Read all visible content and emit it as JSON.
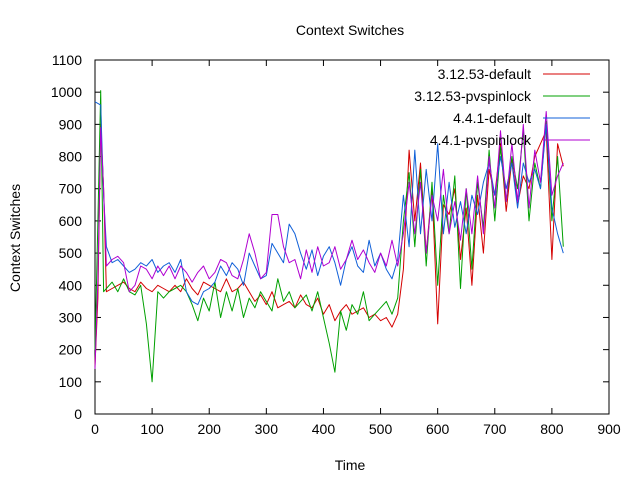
{
  "chart_data": {
    "type": "line",
    "title": "Context Switches",
    "xlabel": "Time",
    "ylabel": "Context Switches",
    "xlim": [
      0,
      900
    ],
    "ylim": [
      0,
      1100
    ],
    "xticks": [
      0,
      100,
      200,
      300,
      400,
      500,
      600,
      700,
      800,
      900
    ],
    "yticks": [
      0,
      100,
      200,
      300,
      400,
      500,
      600,
      700,
      800,
      900,
      1000,
      1100
    ],
    "grid": false,
    "legend_position": "top-right",
    "series": [
      {
        "name": "3.12.53-default",
        "color": "#d40000",
        "x": [
          0,
          5,
          10,
          15,
          20,
          30,
          40,
          50,
          60,
          70,
          80,
          90,
          100,
          110,
          120,
          130,
          140,
          150,
          160,
          170,
          180,
          190,
          200,
          210,
          220,
          230,
          240,
          250,
          260,
          270,
          280,
          290,
          300,
          310,
          320,
          330,
          340,
          350,
          360,
          370,
          380,
          390,
          400,
          410,
          420,
          430,
          440,
          450,
          460,
          470,
          480,
          490,
          500,
          510,
          520,
          530,
          540,
          550,
          560,
          570,
          580,
          590,
          600,
          610,
          620,
          630,
          640,
          650,
          660,
          670,
          680,
          690,
          700,
          710,
          720,
          730,
          740,
          750,
          760,
          770,
          780,
          790,
          800,
          810,
          820
        ],
        "y": [
          150,
          360,
          900,
          700,
          380,
          390,
          400,
          410,
          390,
          380,
          410,
          390,
          380,
          400,
          390,
          380,
          400,
          380,
          420,
          390,
          370,
          410,
          400,
          390,
          380,
          420,
          380,
          390,
          410,
          380,
          350,
          370,
          340,
          380,
          330,
          340,
          350,
          330,
          370,
          340,
          330,
          360,
          310,
          340,
          290,
          320,
          340,
          310,
          320,
          330,
          300,
          310,
          290,
          300,
          270,
          310,
          450,
          820,
          600,
          780,
          500,
          700,
          280,
          650,
          620,
          700,
          480,
          640,
          400,
          680,
          500,
          760,
          680,
          840,
          630,
          790,
          650,
          740,
          700,
          800,
          840,
          880,
          480,
          840,
          770
        ]
      },
      {
        "name": "3.12.53-pvspinlock",
        "color": "#00a000",
        "x": [
          0,
          5,
          10,
          15,
          20,
          30,
          40,
          50,
          60,
          70,
          80,
          90,
          100,
          110,
          120,
          130,
          140,
          150,
          160,
          170,
          180,
          190,
          200,
          210,
          220,
          230,
          240,
          250,
          260,
          270,
          280,
          290,
          300,
          310,
          320,
          330,
          340,
          350,
          360,
          370,
          380,
          390,
          400,
          410,
          420,
          430,
          440,
          450,
          460,
          470,
          480,
          490,
          500,
          510,
          520,
          530,
          540,
          550,
          560,
          570,
          580,
          590,
          600,
          610,
          620,
          630,
          640,
          650,
          660,
          670,
          680,
          690,
          700,
          710,
          720,
          730,
          740,
          750,
          760,
          770,
          780,
          790,
          800,
          810,
          820
        ],
        "y": [
          200,
          600,
          1005,
          380,
          390,
          410,
          380,
          420,
          380,
          370,
          400,
          280,
          100,
          380,
          360,
          380,
          390,
          400,
          380,
          340,
          290,
          360,
          320,
          410,
          300,
          380,
          320,
          390,
          300,
          360,
          330,
          380,
          350,
          320,
          420,
          350,
          380,
          330,
          350,
          370,
          320,
          380,
          300,
          220,
          130,
          320,
          260,
          340,
          310,
          380,
          290,
          310,
          330,
          350,
          310,
          360,
          600,
          750,
          520,
          760,
          460,
          720,
          400,
          680,
          560,
          740,
          390,
          700,
          450,
          720,
          580,
          820,
          600,
          830,
          660,
          800,
          700,
          880,
          600,
          780,
          700,
          910,
          600,
          800,
          520
        ]
      },
      {
        "name": "4.4.1-default",
        "color": "#1060d8",
        "x": [
          0,
          5,
          10,
          15,
          20,
          30,
          40,
          50,
          60,
          70,
          80,
          90,
          100,
          110,
          120,
          130,
          140,
          150,
          160,
          170,
          180,
          190,
          200,
          210,
          220,
          230,
          240,
          250,
          260,
          270,
          280,
          290,
          300,
          310,
          320,
          330,
          340,
          350,
          360,
          370,
          380,
          390,
          400,
          410,
          420,
          430,
          440,
          450,
          460,
          470,
          480,
          490,
          500,
          510,
          520,
          530,
          540,
          550,
          560,
          570,
          580,
          590,
          600,
          610,
          620,
          630,
          640,
          650,
          660,
          670,
          680,
          690,
          700,
          710,
          720,
          730,
          740,
          750,
          760,
          770,
          780,
          790,
          800,
          810,
          820
        ],
        "y": [
          970,
          965,
          960,
          680,
          520,
          470,
          480,
          460,
          440,
          450,
          470,
          460,
          480,
          440,
          460,
          470,
          440,
          480,
          380,
          350,
          340,
          380,
          390,
          410,
          460,
          430,
          470,
          450,
          400,
          500,
          460,
          420,
          430,
          530,
          500,
          470,
          590,
          560,
          500,
          450,
          510,
          430,
          490,
          520,
          470,
          400,
          480,
          520,
          460,
          440,
          540,
          460,
          500,
          450,
          420,
          480,
          680,
          520,
          820,
          560,
          760,
          600,
          840,
          560,
          720,
          580,
          660,
          560,
          680,
          620,
          720,
          780,
          680,
          800,
          700,
          780,
          640,
          780,
          720,
          760,
          700,
          900,
          640,
          560,
          500
        ]
      },
      {
        "name": "4.4.1-pvspinlock",
        "color": "#b000d0",
        "x": [
          0,
          5,
          10,
          15,
          20,
          30,
          40,
          50,
          60,
          70,
          80,
          90,
          100,
          110,
          120,
          130,
          140,
          150,
          160,
          170,
          180,
          190,
          200,
          210,
          220,
          230,
          240,
          250,
          260,
          270,
          280,
          290,
          300,
          310,
          320,
          330,
          340,
          350,
          360,
          370,
          380,
          390,
          400,
          410,
          420,
          430,
          440,
          450,
          460,
          470,
          480,
          490,
          500,
          510,
          520,
          530,
          540,
          550,
          560,
          570,
          580,
          590,
          600,
          610,
          620,
          630,
          640,
          650,
          660,
          670,
          680,
          690,
          700,
          710,
          720,
          730,
          740,
          750,
          760,
          770,
          780,
          790,
          800,
          810,
          820
        ],
        "y": [
          140,
          420,
          890,
          700,
          460,
          480,
          490,
          470,
          380,
          400,
          460,
          450,
          420,
          460,
          430,
          460,
          420,
          460,
          440,
          410,
          440,
          460,
          420,
          440,
          480,
          470,
          430,
          420,
          480,
          560,
          500,
          420,
          440,
          620,
          620,
          520,
          470,
          480,
          420,
          510,
          440,
          520,
          460,
          470,
          520,
          450,
          480,
          540,
          480,
          510,
          470,
          440,
          500,
          460,
          540,
          460,
          560,
          720,
          560,
          720,
          500,
          680,
          600,
          760,
          560,
          660,
          540,
          700,
          560,
          740,
          560,
          800,
          640,
          880,
          660,
          840,
          660,
          900,
          640,
          820,
          720,
          940,
          680,
          740,
          780
        ]
      }
    ]
  }
}
